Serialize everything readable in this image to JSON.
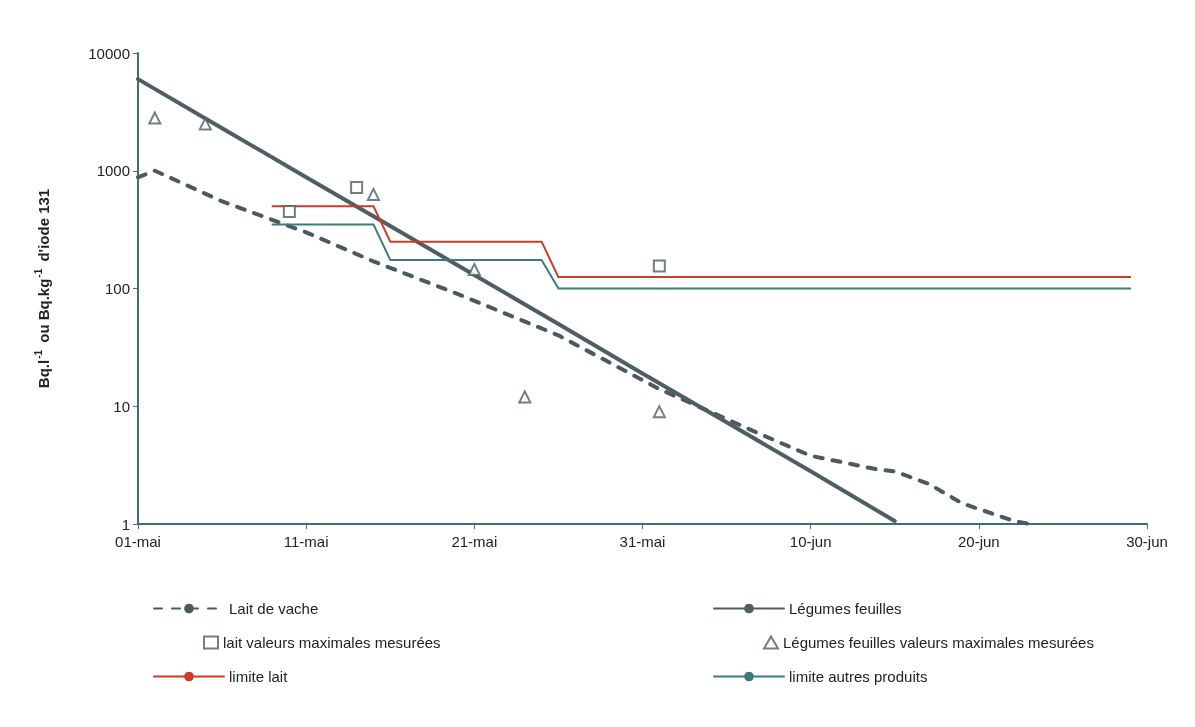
{
  "chart_data": {
    "type": "line",
    "ylabel": "Bq.l$^{-1}$ ou Bq.kg$^{-1}$ d'iode 131",
    "log": "y",
    "grid": false,
    "legend": "bottom",
    "marker": "none",
    "xlim": [
      "--05-01",
      "--06-30"
    ],
    "xticks": [
      {
        "value": "--05-01",
        "label": "01-mai"
      },
      {
        "value": "--05-11",
        "label": "11-mai"
      },
      {
        "value": "--05-21",
        "label": "21-mai"
      },
      {
        "value": "--05-31",
        "label": "31-mai"
      },
      {
        "value": "--06-10",
        "label": "10-jun"
      },
      {
        "value": "--06-20",
        "label": "20-jun"
      },
      {
        "value": "--06-30",
        "label": "30-jun"
      }
    ],
    "ylim": [
      1,
      10000
    ],
    "yticks": [
      1,
      10,
      100,
      1000,
      10000
    ],
    "series": [
      {
        "name": "Lait de vache",
        "color": "#4a5a5e",
        "line_style": "dashed",
        "x": [
          "--05-01",
          "--05-02",
          "--05-06",
          "--05-11",
          "--05-15",
          "--05-20",
          "--05-26",
          "--06-01",
          "--06-07",
          "--06-10",
          "--06-14",
          "--06-15",
          "--06-17",
          "--06-19",
          "--06-22",
          "--06-23"
        ],
        "values": [
          880,
          1000,
          550,
          300,
          170,
          90,
          40,
          14,
          5.8,
          3.8,
          2.9,
          2.8,
          2.2,
          1.5,
          1.07,
          1
        ]
      },
      {
        "name": "Légumes feuilles",
        "color": "#4d5f63",
        "line_style": "solid",
        "x": [
          "--05-01",
          "--05-06",
          "--05-11",
          "--05-16",
          "--05-21",
          "--05-26",
          "--05-31",
          "--06-05",
          "--06-10",
          "--06-15"
        ],
        "values": [
          6000,
          2300,
          880,
          340,
          130,
          50,
          19,
          7.3,
          2.8,
          1.06
        ]
      },
      {
        "name": "lait valeurs maximales mesurées",
        "type": "scatter",
        "marker": "square",
        "color": "#4d5f63",
        "x": [
          "--05-10",
          "--05-14",
          "--06-01"
        ],
        "values": [
          450,
          720,
          155
        ]
      },
      {
        "name": "Légumes feuilles valeurs maximales mesurées",
        "type": "scatter",
        "marker": "triangle",
        "color": "#4d5f63",
        "x": [
          "--05-02",
          "--05-05",
          "--05-15",
          "--05-21",
          "--05-24",
          "--06-01"
        ],
        "values": [
          2800,
          2500,
          630,
          145,
          12,
          9
        ]
      },
      {
        "name": "limite lait",
        "color": "#cc3a2a",
        "line_style": "solid",
        "x": [
          "--05-09",
          "--05-15",
          "--05-16",
          "--05-25",
          "--05-26",
          "--06-29"
        ],
        "values": [
          500,
          500,
          250,
          250,
          125,
          125
        ]
      },
      {
        "name": "limite autres produits",
        "color": "#3d7a7c",
        "line_style": "solid",
        "x": [
          "--05-09",
          "--05-15",
          "--05-16",
          "--05-25",
          "--05-26",
          "--06-29"
        ],
        "values": [
          350,
          350,
          175,
          175,
          100,
          100
        ]
      }
    ]
  }
}
